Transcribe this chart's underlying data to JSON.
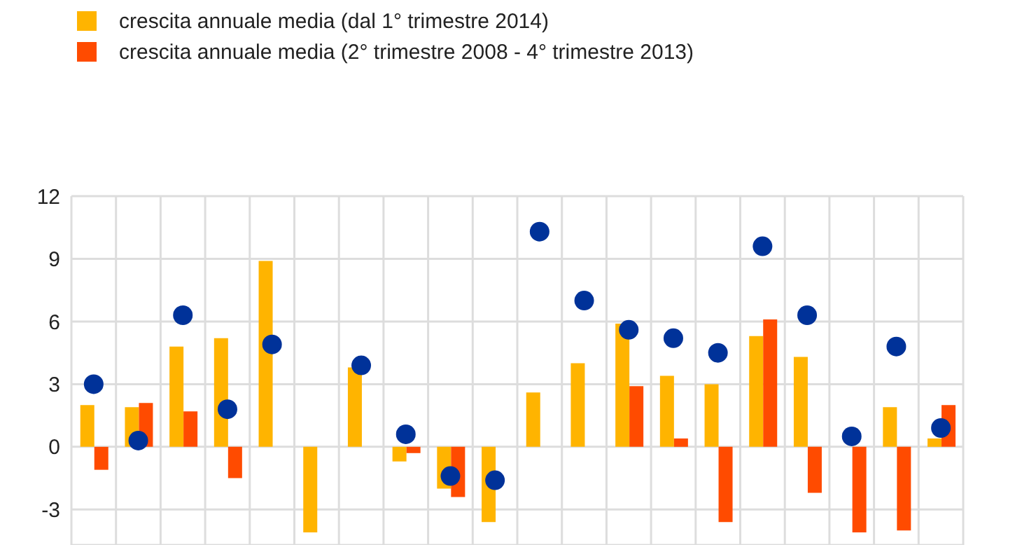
{
  "chart_data": {
    "type": "bar",
    "categories": [
      null,
      null,
      null,
      null,
      null,
      null,
      null,
      null,
      null,
      null,
      null,
      null,
      null,
      null,
      null,
      null,
      null,
      null,
      null,
      null
    ],
    "series": [
      {
        "name": "crescita annuale media (dal 1° trimestre 2014)",
        "color": "#ffb400",
        "values": [
          2.0,
          1.9,
          4.8,
          5.2,
          8.9,
          -4.1,
          3.8,
          -0.7,
          -2.0,
          -3.6,
          2.6,
          4.0,
          5.9,
          3.4,
          3.0,
          5.3,
          4.3,
          null,
          1.9,
          0.4
        ]
      },
      {
        "name": "crescita annuale media (2° trimestre 2008 - 4° trimestre 2013)",
        "color": "#ff4b00",
        "values": [
          -1.1,
          2.1,
          1.7,
          -1.5,
          null,
          null,
          null,
          -0.3,
          -2.4,
          null,
          null,
          null,
          2.9,
          0.4,
          -3.6,
          6.1,
          -2.2,
          -4.1,
          -4.0,
          2.0
        ]
      },
      {
        "type": "scatter",
        "color": "#003299",
        "marker": "circle",
        "values": [
          3.0,
          0.3,
          6.3,
          1.8,
          4.9,
          null,
          3.9,
          0.6,
          -1.4,
          -1.6,
          10.3,
          7.0,
          5.6,
          5.2,
          4.5,
          9.6,
          6.3,
          0.5,
          4.8,
          0.9
        ]
      }
    ],
    "ylim": [
      -4.7,
      12
    ],
    "yticks": [
      -3,
      0,
      3,
      6,
      9,
      12
    ],
    "grid": true,
    "legend": "top",
    "tick_labels": "y"
  }
}
